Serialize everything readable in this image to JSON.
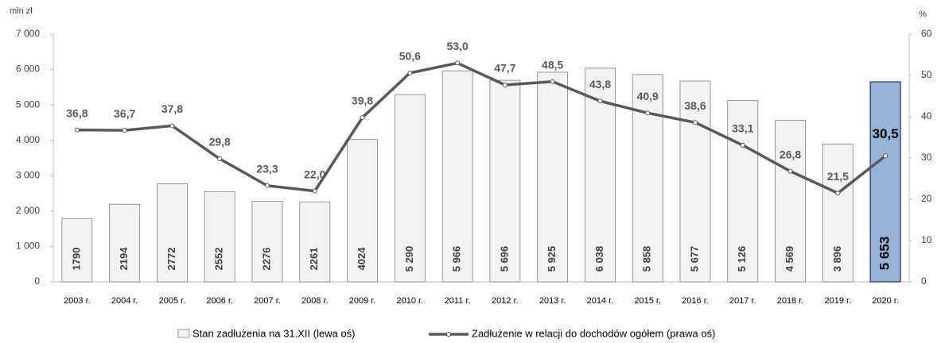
{
  "chart_data": {
    "type": "bar_line",
    "y_unit": "mln zł",
    "y2_unit": "%",
    "categories": [
      "2003 r.",
      "2004 r.",
      "2005 r.",
      "2006 r.",
      "2007 r.",
      "2008 r.",
      "2009 r.",
      "2010 r.",
      "2011 r.",
      "2012 r.",
      "2013 r.",
      "2014 r.",
      "2015 r.",
      "2016 r.",
      "2017 r.",
      "2018 r.",
      "2019 r.",
      "2020 r."
    ],
    "series": [
      {
        "name": "Stan zadłużenia na 31.XII (lewa oś)",
        "type": "bar",
        "axis": "y",
        "color": "#f2f2f2",
        "colors": [
          "#f2f2f2",
          "#f2f2f2",
          "#f2f2f2",
          "#f2f2f2",
          "#f2f2f2",
          "#f2f2f2",
          "#f2f2f2",
          "#f2f2f2",
          "#f2f2f2",
          "#f2f2f2",
          "#f2f2f2",
          "#f2f2f2",
          "#f2f2f2",
          "#f2f2f2",
          "#f2f2f2",
          "#f2f2f2",
          "#f2f2f2",
          "#95b3d7"
        ],
        "values": [
          1790,
          2194,
          2772,
          2552,
          2276,
          2261,
          4024,
          5290,
          5966,
          5696,
          5925,
          6038,
          5858,
          5677,
          5126,
          4569,
          3896,
          5653
        ],
        "value_labels": [
          "1790",
          "2194",
          "2772",
          "2552",
          "2276",
          "2261",
          "4024",
          "5 290",
          "5 966",
          "5 696",
          "5 925",
          "6 038",
          "5 858",
          "5 677",
          "5 126",
          "4 569",
          "3 896",
          "5 653"
        ]
      },
      {
        "name": "Zadłużenie w relacji do dochodów ogółem (prawa oś)",
        "type": "line",
        "axis": "y2",
        "color": "#595959",
        "values": [
          36.8,
          36.7,
          37.8,
          29.8,
          23.3,
          22.0,
          39.8,
          50.6,
          53.0,
          47.7,
          48.5,
          43.8,
          40.9,
          38.6,
          33.1,
          26.8,
          21.5,
          30.5
        ],
        "value_labels": [
          "36,8",
          "36,7",
          "37,8",
          "29,8",
          "23,3",
          "22,0",
          "39,8",
          "50,6",
          "53,0",
          "47,7",
          "48,5",
          "43,8",
          "40,9",
          "38,6",
          "33,1",
          "26,8",
          "21,5",
          "30,5"
        ]
      }
    ],
    "ylim": [
      0,
      7000
    ],
    "yticks": [
      0,
      {
        "value": 1000,
        "label": "1 000"
      },
      {
        "value": 2000,
        "label": "2 000"
      },
      {
        "value": 3000,
        "label": "3 000"
      },
      {
        "value": 4000,
        "label": "4 000"
      },
      {
        "value": 5000,
        "label": "5 000"
      },
      {
        "value": 6000,
        "label": "6 000"
      },
      {
        "value": 7000,
        "label": "7 000"
      }
    ],
    "y2lim": [
      0,
      60
    ],
    "y2ticks": [
      0,
      10,
      20,
      30,
      40,
      50,
      60
    ]
  }
}
